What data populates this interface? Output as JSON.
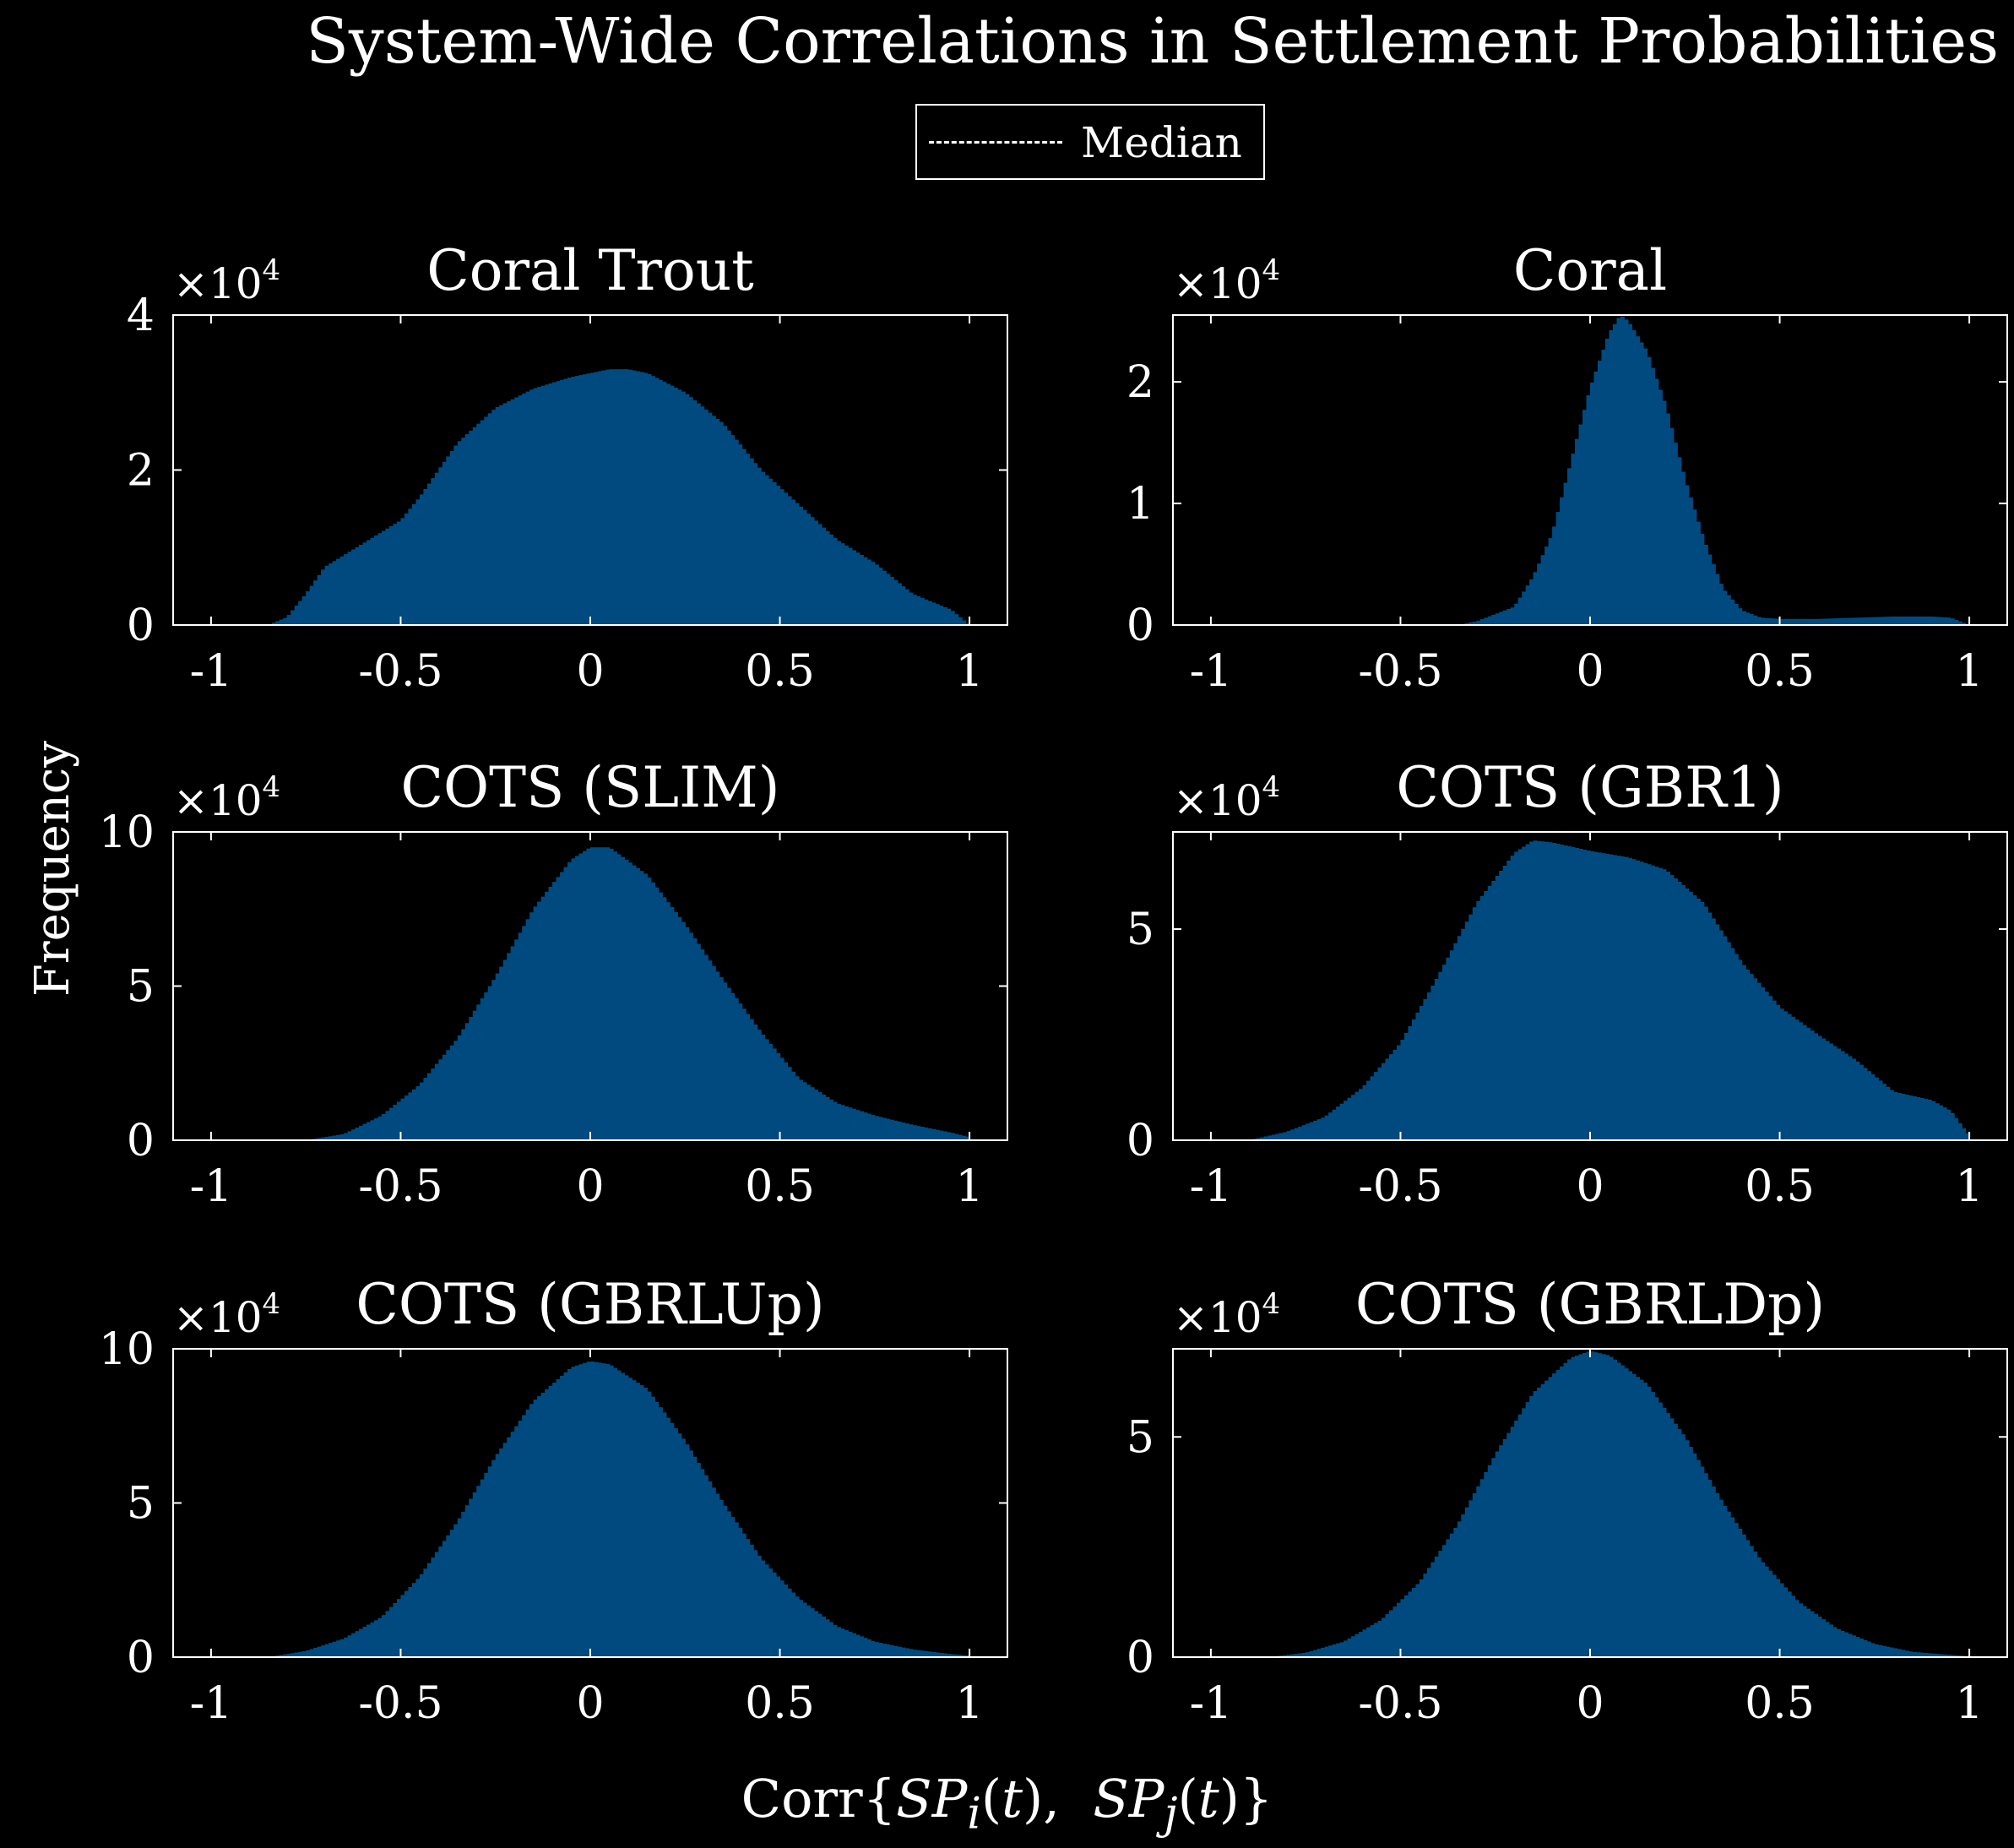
{
  "title": "System-Wide Correlations in Settlement Probabilities",
  "legend": {
    "label": "Median"
  },
  "ylabel": "Frequency",
  "xlabel": "Corr{SPi(t),  SPj(t)}",
  "exponent_label": "×10",
  "exponent_power": "4",
  "colors": {
    "background": "#000000",
    "bar": "#004a80",
    "axis": "#ffffff"
  },
  "chart_data": [
    {
      "type": "histogram",
      "title": "Coral Trout",
      "xlim": [
        -1.1,
        1.1
      ],
      "ylim": [
        0,
        4
      ],
      "xticks": [
        "-1",
        "-0.5",
        "0",
        "0.5",
        "1"
      ],
      "yticks": [
        "0",
        "2",
        "4"
      ],
      "scale_note": "×10^4",
      "x": [
        -1,
        -0.85,
        -0.8,
        -0.75,
        -0.7,
        -0.6,
        -0.5,
        -0.45,
        -0.35,
        -0.25,
        -0.15,
        -0.05,
        0.0,
        0.05,
        0.1,
        0.15,
        0.25,
        0.35,
        0.45,
        0.55,
        0.65,
        0.75,
        0.85,
        0.95,
        1.0
      ],
      "values": [
        0,
        0,
        0.1,
        0.4,
        0.75,
        1.05,
        1.35,
        1.65,
        2.35,
        2.8,
        3.05,
        3.2,
        3.25,
        3.3,
        3.3,
        3.25,
        3.0,
        2.6,
        2.0,
        1.55,
        1.1,
        0.8,
        0.4,
        0.2,
        0.0
      ]
    },
    {
      "type": "histogram",
      "title": "Coral",
      "xlim": [
        -1.1,
        1.1
      ],
      "ylim": [
        0,
        2.55
      ],
      "xticks": [
        "-1",
        "-0.5",
        "0",
        "0.5",
        "1"
      ],
      "yticks": [
        "0",
        "1",
        "2"
      ],
      "scale_note": "×10^4",
      "x": [
        -1,
        -0.35,
        -0.3,
        -0.2,
        -0.15,
        -0.1,
        -0.05,
        0.0,
        0.05,
        0.08,
        0.1,
        0.15,
        0.2,
        0.25,
        0.3,
        0.35,
        0.4,
        0.45,
        0.5,
        0.6,
        0.7,
        0.8,
        0.9,
        0.95,
        1.0
      ],
      "values": [
        0,
        0,
        0.03,
        0.15,
        0.4,
        0.75,
        1.35,
        1.95,
        2.4,
        2.55,
        2.5,
        2.25,
        1.8,
        1.2,
        0.7,
        0.3,
        0.12,
        0.06,
        0.05,
        0.05,
        0.06,
        0.07,
        0.07,
        0.06,
        0.0
      ]
    },
    {
      "type": "histogram",
      "title": "COTS (SLIM)",
      "xlim": [
        -1.1,
        1.1
      ],
      "ylim": [
        0,
        10
      ],
      "xticks": [
        "-1",
        "-0.5",
        "0",
        "0.5",
        "1"
      ],
      "yticks": [
        "0",
        "5",
        "10"
      ],
      "scale_note": "×10^4",
      "x": [
        -1,
        -0.75,
        -0.65,
        -0.55,
        -0.45,
        -0.35,
        -0.25,
        -0.15,
        -0.05,
        0.0,
        0.05,
        0.15,
        0.25,
        0.35,
        0.45,
        0.55,
        0.65,
        0.75,
        0.85,
        0.95,
        1.0
      ],
      "values": [
        0,
        0,
        0.2,
        0.8,
        1.8,
        3.3,
        5.3,
        7.5,
        9.1,
        9.5,
        9.5,
        8.6,
        7.0,
        5.2,
        3.5,
        2.0,
        1.2,
        0.8,
        0.5,
        0.25,
        0.1
      ]
    },
    {
      "type": "histogram",
      "title": "COTS (GBR1)",
      "xlim": [
        -1.1,
        1.1
      ],
      "ylim": [
        0,
        7.3
      ],
      "xticks": [
        "-1",
        "-0.5",
        "0",
        "0.5",
        "1"
      ],
      "yticks": [
        "0",
        "5"
      ],
      "scale_note": "×10^4",
      "x": [
        -1,
        -0.9,
        -0.8,
        -0.7,
        -0.6,
        -0.5,
        -0.4,
        -0.3,
        -0.2,
        -0.15,
        -0.1,
        0.0,
        0.1,
        0.2,
        0.3,
        0.4,
        0.5,
        0.6,
        0.7,
        0.8,
        0.9,
        0.95,
        1.0
      ],
      "values": [
        0,
        0,
        0.2,
        0.55,
        1.25,
        2.3,
        3.9,
        5.6,
        6.8,
        7.1,
        7.05,
        6.85,
        6.7,
        6.4,
        5.6,
        4.2,
        3.15,
        2.5,
        1.9,
        1.15,
        0.95,
        0.7,
        0.1
      ]
    },
    {
      "type": "histogram",
      "title": "COTS (GBRLUp)",
      "xlim": [
        -1.1,
        1.1
      ],
      "ylim": [
        0,
        10
      ],
      "xticks": [
        "-1",
        "-0.5",
        "0",
        "0.5",
        "1"
      ],
      "yticks": [
        "0",
        "5",
        "10"
      ],
      "scale_note": "×10^4",
      "x": [
        -1,
        -0.85,
        -0.75,
        -0.65,
        -0.55,
        -0.45,
        -0.35,
        -0.25,
        -0.15,
        -0.05,
        0.0,
        0.05,
        0.15,
        0.25,
        0.35,
        0.45,
        0.55,
        0.65,
        0.75,
        0.85,
        0.95,
        1.0
      ],
      "values": [
        0,
        0,
        0.2,
        0.6,
        1.3,
        2.6,
        4.4,
        6.5,
        8.3,
        9.4,
        9.6,
        9.5,
        8.7,
        7.0,
        5.0,
        3.2,
        1.9,
        1.0,
        0.5,
        0.25,
        0.1,
        0.05
      ]
    },
    {
      "type": "histogram",
      "title": "COTS (GBRLDp)",
      "xlim": [
        -1.1,
        1.1
      ],
      "ylim": [
        0,
        7
      ],
      "xticks": [
        "-1",
        "-0.5",
        "0",
        "0.5",
        "1"
      ],
      "yticks": [
        "0",
        "5"
      ],
      "scale_note": "×10^4",
      "x": [
        -1,
        -0.85,
        -0.75,
        -0.65,
        -0.55,
        -0.45,
        -0.35,
        -0.25,
        -0.15,
        -0.05,
        0.0,
        0.05,
        0.15,
        0.25,
        0.35,
        0.45,
        0.55,
        0.65,
        0.75,
        0.85,
        0.95,
        1.0
      ],
      "values": [
        0,
        0,
        0.1,
        0.35,
        0.85,
        1.7,
        3.0,
        4.6,
        6.0,
        6.8,
        6.95,
        6.85,
        6.2,
        5.0,
        3.5,
        2.2,
        1.25,
        0.65,
        0.3,
        0.12,
        0.05,
        0.02
      ]
    }
  ]
}
